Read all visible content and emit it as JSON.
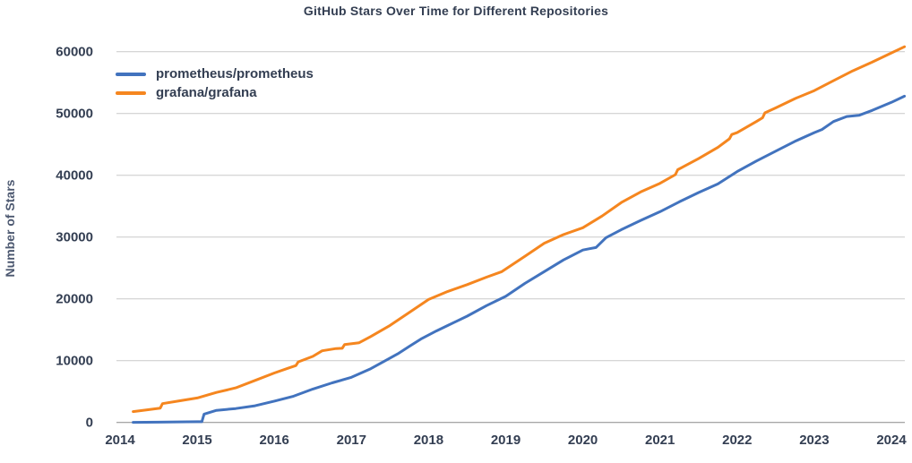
{
  "chart_data": {
    "type": "line",
    "title": "GitHub Stars Over Time for Different Repositories",
    "xlabel": "",
    "ylabel": "Number of Stars",
    "xlim": [
      2013.95,
      2024.3
    ],
    "ylim": [
      0,
      62000
    ],
    "xticks": [
      2014,
      2015,
      2016,
      2017,
      2018,
      2019,
      2020,
      2021,
      2022,
      2023,
      2024
    ],
    "yticks": [
      0,
      10000,
      20000,
      30000,
      40000,
      50000,
      60000
    ],
    "grid": "horizontal",
    "legend_position": "upper-left",
    "series": [
      {
        "name": "prometheus/prometheus",
        "color": "#4273be",
        "points": [
          [
            2014.17,
            10
          ],
          [
            2014.33,
            30
          ],
          [
            2014.5,
            50
          ],
          [
            2014.75,
            80
          ],
          [
            2015.0,
            110
          ],
          [
            2015.06,
            120
          ],
          [
            2015.09,
            1350
          ],
          [
            2015.25,
            1950
          ],
          [
            2015.5,
            2250
          ],
          [
            2015.75,
            2700
          ],
          [
            2016.0,
            3450
          ],
          [
            2016.25,
            4250
          ],
          [
            2016.5,
            5400
          ],
          [
            2016.75,
            6400
          ],
          [
            2017.0,
            7300
          ],
          [
            2017.25,
            8700
          ],
          [
            2017.44,
            10000
          ],
          [
            2017.6,
            11100
          ],
          [
            2017.75,
            12300
          ],
          [
            2017.9,
            13500
          ],
          [
            2018.1,
            14800
          ],
          [
            2018.25,
            15700
          ],
          [
            2018.5,
            17200
          ],
          [
            2018.75,
            18900
          ],
          [
            2019.0,
            20400
          ],
          [
            2019.25,
            22500
          ],
          [
            2019.5,
            24400
          ],
          [
            2019.75,
            26300
          ],
          [
            2020.0,
            27900
          ],
          [
            2020.08,
            28100
          ],
          [
            2020.17,
            28300
          ],
          [
            2020.3,
            29900
          ],
          [
            2020.5,
            31200
          ],
          [
            2020.75,
            32700
          ],
          [
            2021.0,
            34100
          ],
          [
            2021.25,
            35700
          ],
          [
            2021.5,
            37200
          ],
          [
            2021.75,
            38600
          ],
          [
            2022.0,
            40600
          ],
          [
            2022.25,
            42300
          ],
          [
            2022.5,
            43900
          ],
          [
            2022.75,
            45500
          ],
          [
            2023.0,
            46900
          ],
          [
            2023.1,
            47400
          ],
          [
            2023.25,
            48700
          ],
          [
            2023.42,
            49500
          ],
          [
            2023.58,
            49700
          ],
          [
            2023.75,
            50500
          ],
          [
            2024.0,
            51800
          ],
          [
            2024.17,
            52800
          ]
        ]
      },
      {
        "name": "grafana/grafana",
        "color": "#f5861f",
        "points": [
          [
            2014.17,
            1750
          ],
          [
            2014.33,
            2000
          ],
          [
            2014.52,
            2300
          ],
          [
            2014.55,
            3050
          ],
          [
            2014.75,
            3450
          ],
          [
            2015.0,
            3950
          ],
          [
            2015.25,
            4850
          ],
          [
            2015.5,
            5600
          ],
          [
            2015.75,
            6800
          ],
          [
            2016.0,
            8000
          ],
          [
            2016.16,
            8700
          ],
          [
            2016.28,
            9200
          ],
          [
            2016.31,
            9800
          ],
          [
            2016.5,
            10700
          ],
          [
            2016.62,
            11600
          ],
          [
            2016.8,
            11950
          ],
          [
            2016.88,
            12000
          ],
          [
            2016.91,
            12600
          ],
          [
            2017.1,
            12900
          ],
          [
            2017.25,
            13900
          ],
          [
            2017.5,
            15700
          ],
          [
            2017.75,
            17800
          ],
          [
            2018.0,
            19900
          ],
          [
            2018.25,
            21200
          ],
          [
            2018.5,
            22300
          ],
          [
            2018.75,
            23500
          ],
          [
            2018.95,
            24400
          ],
          [
            2019.25,
            26900
          ],
          [
            2019.5,
            29000
          ],
          [
            2019.75,
            30400
          ],
          [
            2020.0,
            31500
          ],
          [
            2020.25,
            33400
          ],
          [
            2020.5,
            35600
          ],
          [
            2020.75,
            37300
          ],
          [
            2021.0,
            38700
          ],
          [
            2021.2,
            40100
          ],
          [
            2021.23,
            40900
          ],
          [
            2021.5,
            42700
          ],
          [
            2021.75,
            44500
          ],
          [
            2021.9,
            45900
          ],
          [
            2021.93,
            46600
          ],
          [
            2022.0,
            46900
          ],
          [
            2022.25,
            48700
          ],
          [
            2022.33,
            49300
          ],
          [
            2022.36,
            50100
          ],
          [
            2022.5,
            50900
          ],
          [
            2022.75,
            52400
          ],
          [
            2023.0,
            53700
          ],
          [
            2023.25,
            55300
          ],
          [
            2023.5,
            56900
          ],
          [
            2023.75,
            58300
          ],
          [
            2024.0,
            59800
          ],
          [
            2024.17,
            60800
          ]
        ]
      }
    ]
  },
  "palette": {
    "text": "#333e52",
    "axis_title_text": "#4c5870",
    "gridline": "#c9c9c9",
    "axis_line": "#8a8a8a",
    "background": "#ffffff"
  }
}
